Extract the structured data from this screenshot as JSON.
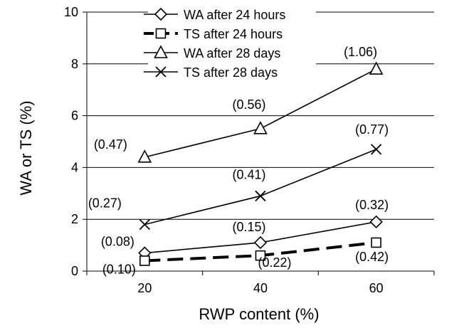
{
  "chart_data": {
    "type": "line",
    "title": "",
    "xlabel": "RWP content (%)",
    "ylabel": "WA or TS (%)",
    "x": [
      20,
      40,
      60
    ],
    "xlim": [
      10,
      70
    ],
    "ylim": [
      0,
      10
    ],
    "xticks": [
      "20",
      "40",
      "60"
    ],
    "yticks": [
      "0",
      "2",
      "4",
      "6",
      "8",
      "10"
    ],
    "grid": "horizontal",
    "legend_position": "top-left",
    "series": [
      {
        "name": "WA after 24 hours",
        "marker": "diamond",
        "line": "solid",
        "values": [
          0.7,
          1.1,
          1.9
        ],
        "labels": [
          "(0.08)",
          "(0.15)",
          "(0.32)"
        ]
      },
      {
        "name": "TS after 24 hours",
        "marker": "square",
        "line": "dashed",
        "values": [
          0.4,
          0.6,
          1.1
        ],
        "labels": [
          "(0.10)",
          "(0.22)",
          "(0.42)"
        ]
      },
      {
        "name": "WA after 28 days",
        "marker": "triangle",
        "line": "solid",
        "values": [
          4.4,
          5.5,
          7.8
        ],
        "labels": [
          "(0.47)",
          "(0.56)",
          "(1.06)"
        ]
      },
      {
        "name": "TS after 28 days",
        "marker": "x",
        "line": "solid",
        "values": [
          1.8,
          2.9,
          4.7
        ],
        "labels": [
          "(0.27)",
          "(0.41)",
          "(0.77)"
        ]
      }
    ]
  }
}
